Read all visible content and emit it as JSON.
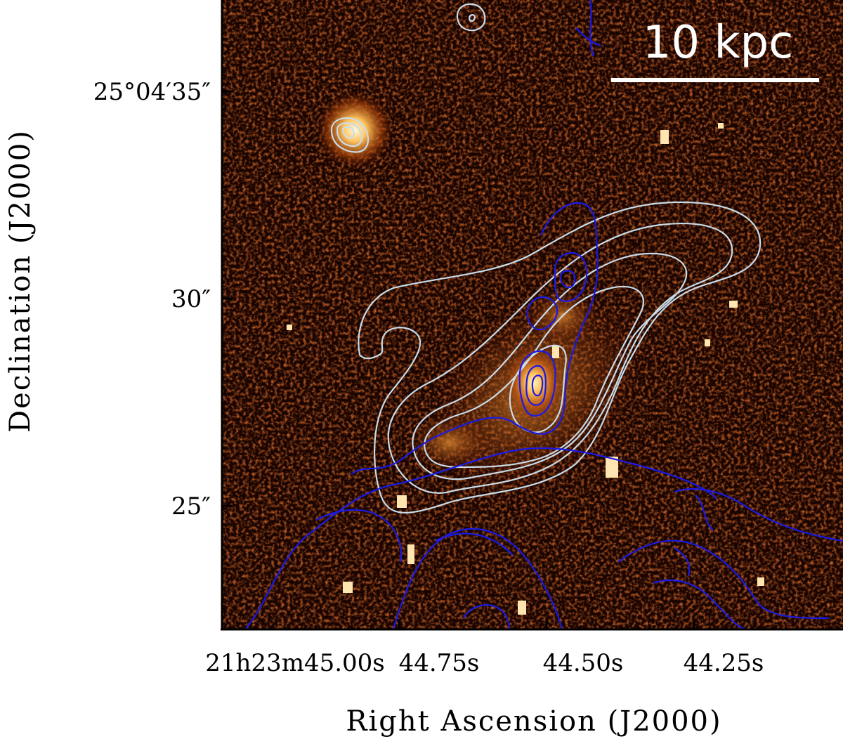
{
  "figure": {
    "scale_bar_label": "10 kpc",
    "x_axis_title": "Right Ascension (J2000)",
    "y_axis_title": "Declination (J2000)",
    "dec_ticks": [
      {
        "deg": "25°04′35″",
        "label": "25°04′35″"
      },
      {
        "label": "30″"
      },
      {
        "label": "25″"
      }
    ],
    "ra_ticks": [
      {
        "h": "21",
        "m": "23",
        "s": "45.00",
        "label": "21h23m45.00s"
      },
      {
        "s": "44.75",
        "label": "44.75s"
      },
      {
        "s": "44.50",
        "label": "44.50s"
      },
      {
        "s": "44.25",
        "label": "44.25s"
      }
    ],
    "colors": {
      "image_dark": "#1a0400",
      "image_mid": "#8a2a05",
      "image_bright": "#ffd27a",
      "contour_light": "#c9dcea",
      "contour_blue": "#1a1ae6",
      "scale_bar": "#ffffff"
    }
  }
}
